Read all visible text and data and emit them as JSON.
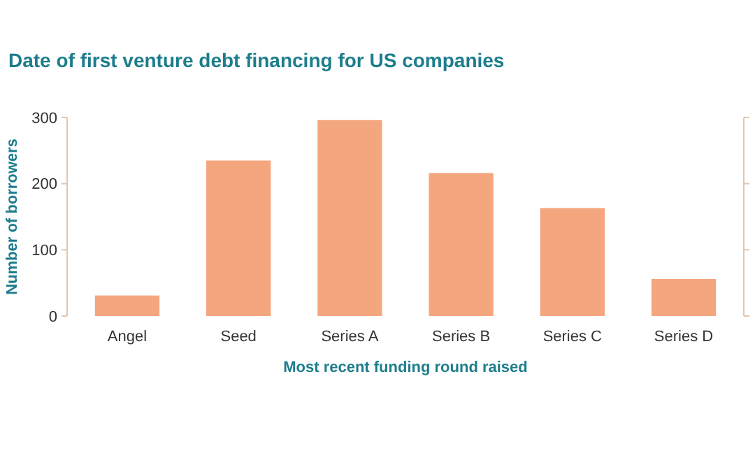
{
  "chart_data": {
    "type": "bar",
    "title": "Date of first venture debt financing for US companies",
    "xlabel": "Most recent funding round raised",
    "ylabel": "Number of borrowers",
    "categories": [
      "Angel",
      "Seed",
      "Series A",
      "Series B",
      "Series C",
      "Series D"
    ],
    "values": [
      31,
      235,
      296,
      216,
      163,
      56
    ],
    "color": "#f4a77f",
    "ylim": [
      0,
      300
    ],
    "yticks": [
      0,
      100,
      200,
      300
    ],
    "grid": false
  }
}
